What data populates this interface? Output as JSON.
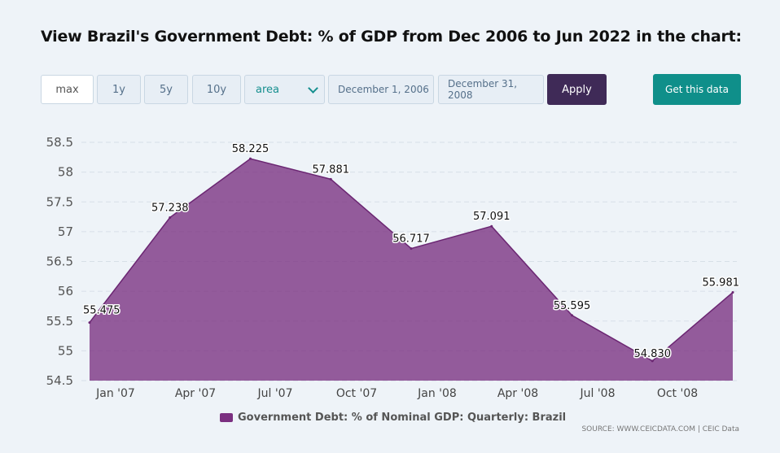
{
  "title": "View Brazil's Government Debt: % of GDP from Dec 2006 to Jun 2022 in the chart:",
  "controls": {
    "range_buttons": [
      "max",
      "1y",
      "5y",
      "10y"
    ],
    "chart_type_selected": "area",
    "start_date": "December 1, 2006",
    "end_date": "December 31, 2008",
    "apply_label": "Apply",
    "get_data_label": "Get this data"
  },
  "colors": {
    "area_fill": "#7a2f80",
    "apply_bg": "#3f2a57",
    "get_data_bg": "#0f8f8a"
  },
  "chart_data": {
    "type": "area",
    "series": [
      {
        "name": "Government Debt: % of Nominal GDP: Quarterly: Brazil",
        "x": [
          "Dec 2006",
          "Mar 2007",
          "Jun 2007",
          "Sep 2007",
          "Dec 2007",
          "Mar 2008",
          "Jun 2008",
          "Sep 2008",
          "Dec 2008"
        ],
        "values": [
          55.475,
          57.238,
          58.225,
          57.881,
          56.717,
          57.091,
          55.595,
          54.83,
          55.981
        ],
        "labels": [
          "55.475",
          "57.238",
          "58.225",
          "57.881",
          "56.717",
          "57.091",
          "55.595",
          "54.830",
          "55.981"
        ]
      }
    ],
    "x_tick_labels": [
      "Jan '07",
      "Apr '07",
      "Jul '07",
      "Oct '07",
      "Jan '08",
      "Apr '08",
      "Jul '08",
      "Oct '08"
    ],
    "y_ticks": [
      "54.5",
      "55",
      "55.5",
      "56",
      "56.5",
      "57",
      "57.5",
      "58",
      "58.5"
    ],
    "ylim": [
      54.5,
      58.5
    ],
    "grid": "y-dashed",
    "legend_position": "bottom",
    "source": "SOURCE: WWW.CEICDATA.COM | CEIC Data"
  }
}
